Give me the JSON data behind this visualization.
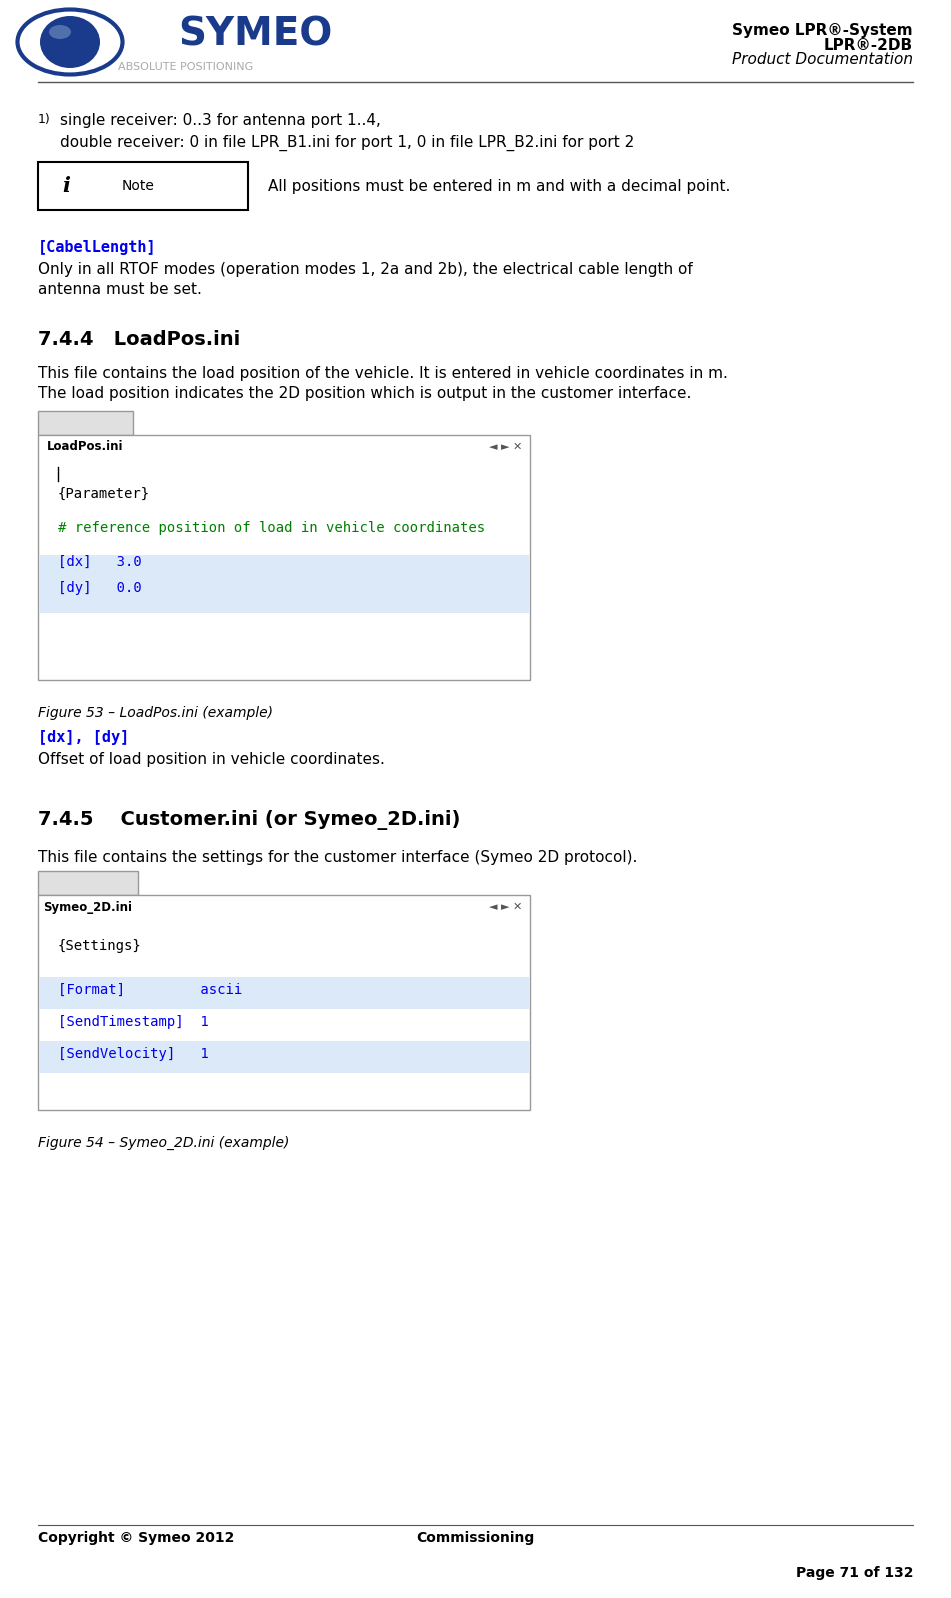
{
  "page_width": 9.51,
  "page_height": 15.98,
  "dpi": 100,
  "bg_color": "#ffffff",
  "text_color": "#000000",
  "blue_color": "#0000ee",
  "green_color": "#008000",
  "gray_color": "#888888",
  "hl_color": "#dce9f8",
  "box_border": "#999999",
  "tab_bg": "#e0e0e0",
  "header_right": [
    "Symeo LPR®-System",
    "LPR®-2DB",
    "Product Documentation"
  ],
  "header_right_bold": [
    true,
    true,
    false
  ],
  "header_right_italic": [
    false,
    false,
    true
  ],
  "note_text": "All positions must be entered in m and with a decimal point.",
  "cabel_label": "[CabelLength]",
  "cabel_body": "Only in all RTOF modes (operation modes 1, 2a and 2b), the electrical cable length of\nantenna must be set.",
  "sec744_num": "7.4.4",
  "sec744_title": "   LoadPos.ini",
  "sec744_desc1": "This file contains the load position of the vehicle. It is entered in vehicle coordinates in m.",
  "sec744_desc2": "The load position indicates the 2D position which is output in the customer interface.",
  "loadpos_tab": "LoadPos.ini",
  "fig53": "Figure 53 – LoadPos.ini (example)",
  "dxdy_label": "[dx], [dy]",
  "dxdy_body": "Offset of load position in vehicle coordinates.",
  "sec745_num": "7.4.5",
  "sec745_title": "    Customer.ini (or Symeo_2D.ini)",
  "sec745_desc": "This file contains the settings for the customer interface (Symeo 2D protocol).",
  "symeo2d_tab": "Symeo_2D.ini",
  "fig54": "Figure 54 – Symeo_2D.ini (example)",
  "footer_center": "Commissioning",
  "footer_left": "Copyright © Symeo 2012",
  "footer_right": "Page 71 of 132"
}
